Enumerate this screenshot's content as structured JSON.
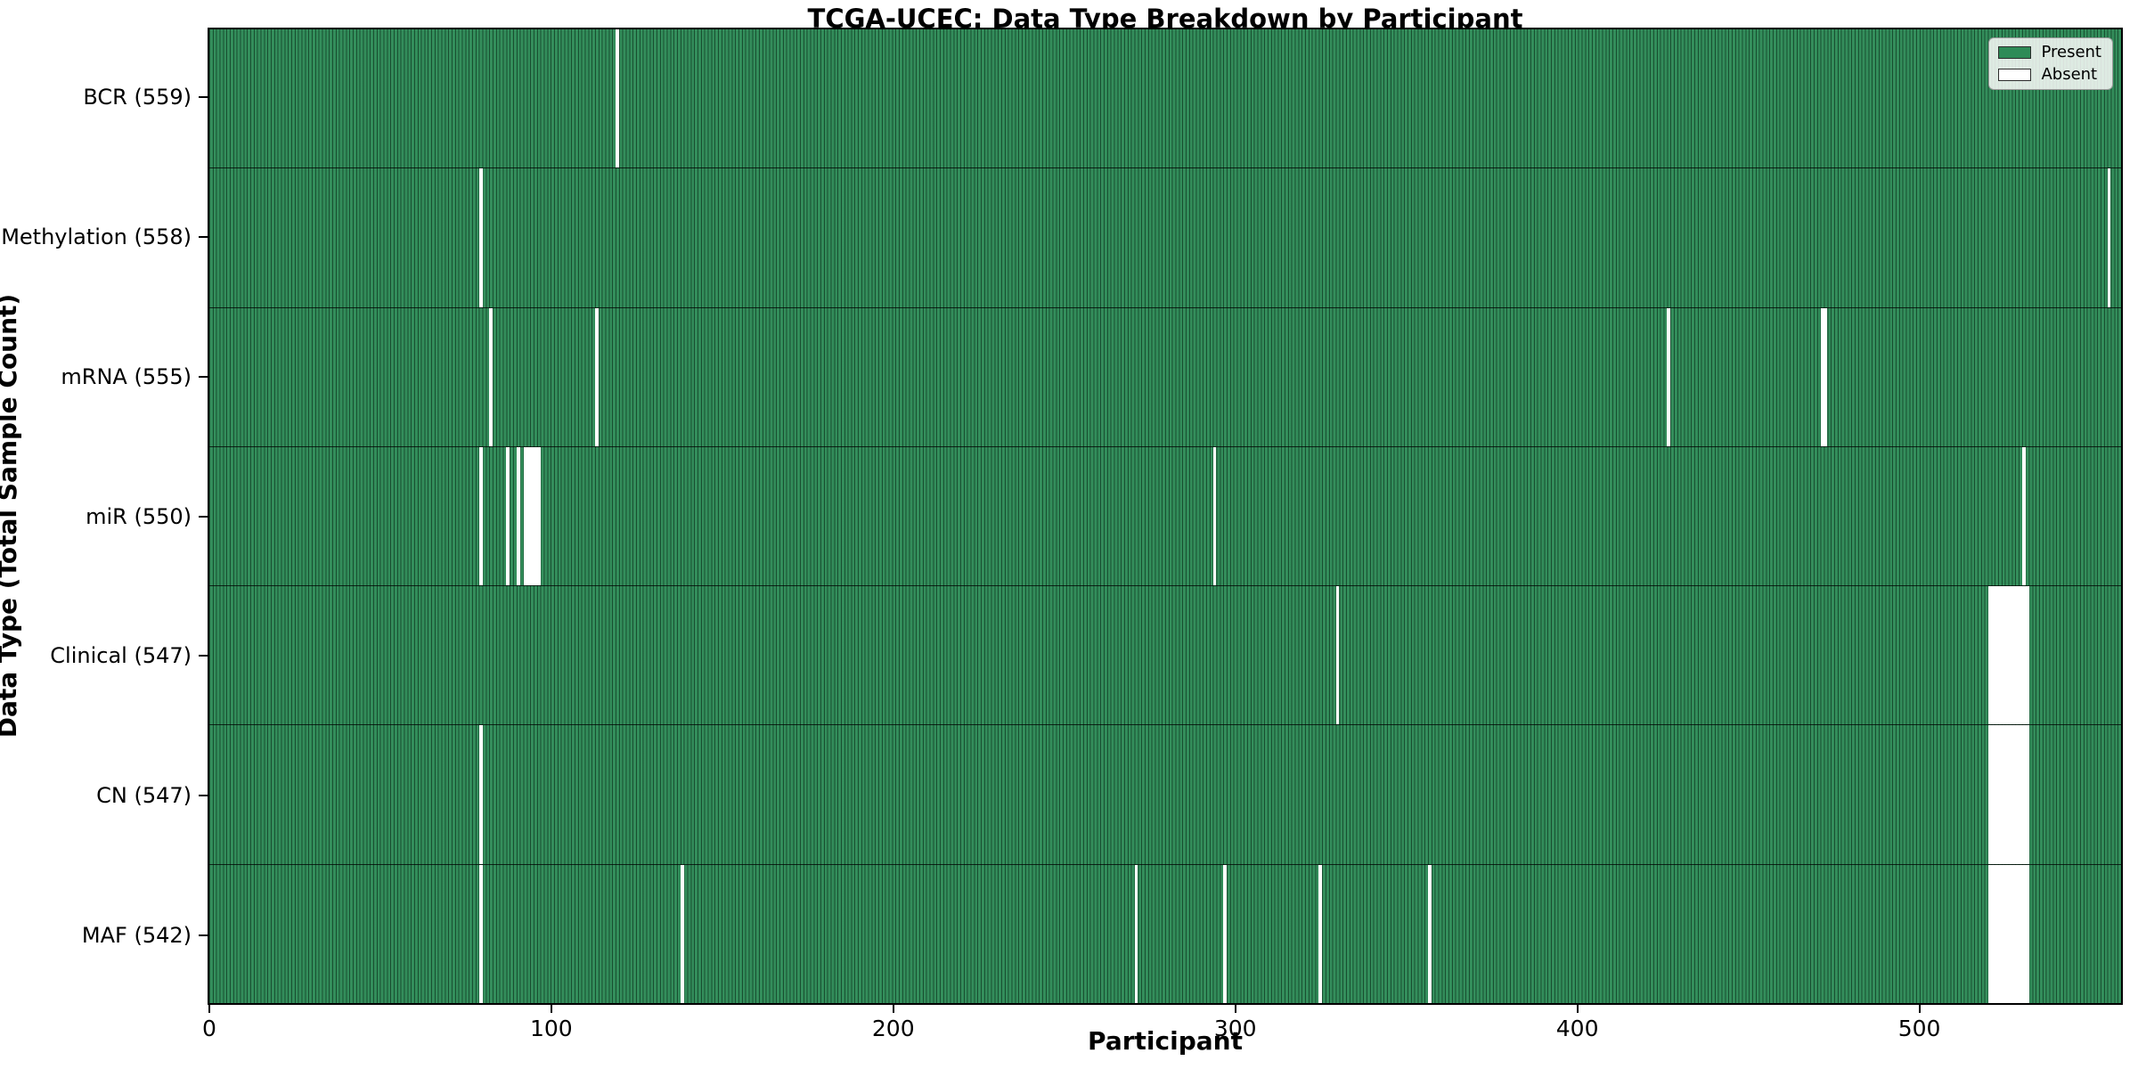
{
  "figure": {
    "title": "TCGA-UCEC: Data Type Breakdown by Participant",
    "xlabel": "Participant",
    "ylabel": "Data Type (Total Sample Count)"
  },
  "legend": {
    "position": "upper right",
    "present_label": "Present",
    "absent_label": "Absent"
  },
  "chart_data": {
    "type": "heatmap",
    "title": "TCGA-UCEC: Data Type Breakdown by Participant",
    "xlabel": "Participant",
    "ylabel": "Data Type (Total Sample Count)",
    "x_ticks": [
      0,
      100,
      200,
      300,
      400,
      500
    ],
    "xlim": [
      -0.5,
      559.5
    ],
    "n_participants": 560,
    "grid": false,
    "colors": {
      "present": "#2E8B57",
      "absent": "#FFFFFF",
      "bar_edge": "#0B2C1A"
    },
    "legend_entries": [
      {
        "label": "Present",
        "color": "#2E8B57"
      },
      {
        "label": "Absent",
        "color": "#FFFFFF"
      }
    ],
    "rows": [
      {
        "label": "BCR (559)",
        "name": "BCR",
        "total_present": 559,
        "absent_participants": [
          119
        ]
      },
      {
        "label": "Methylation (558)",
        "name": "Methylation",
        "total_present": 558,
        "absent_participants": [
          79,
          556
        ]
      },
      {
        "label": "mRNA (555)",
        "name": "mRNA",
        "total_present": 555,
        "absent_participants": [
          82,
          113,
          427,
          472,
          473
        ]
      },
      {
        "label": "miR (550)",
        "name": "miR",
        "total_present": 550,
        "absent_participants": [
          79,
          87,
          90,
          92,
          93,
          94,
          95,
          96,
          294,
          531
        ]
      },
      {
        "label": "Clinical (547)",
        "name": "Clinical",
        "total_present": 547,
        "absent_participants": [
          330,
          521,
          522,
          523,
          524,
          525,
          526,
          527,
          528,
          529,
          530,
          531,
          532
        ]
      },
      {
        "label": "CN (547)",
        "name": "CN",
        "total_present": 547,
        "absent_participants": [
          79,
          521,
          522,
          523,
          524,
          525,
          526,
          527,
          528,
          529,
          530,
          531,
          532
        ]
      },
      {
        "label": "MAF (542)",
        "name": "MAF",
        "total_present": 542,
        "absent_participants": [
          79,
          138,
          271,
          297,
          325,
          357,
          521,
          522,
          523,
          524,
          525,
          526,
          527,
          528,
          529,
          530,
          531,
          532
        ]
      }
    ]
  }
}
